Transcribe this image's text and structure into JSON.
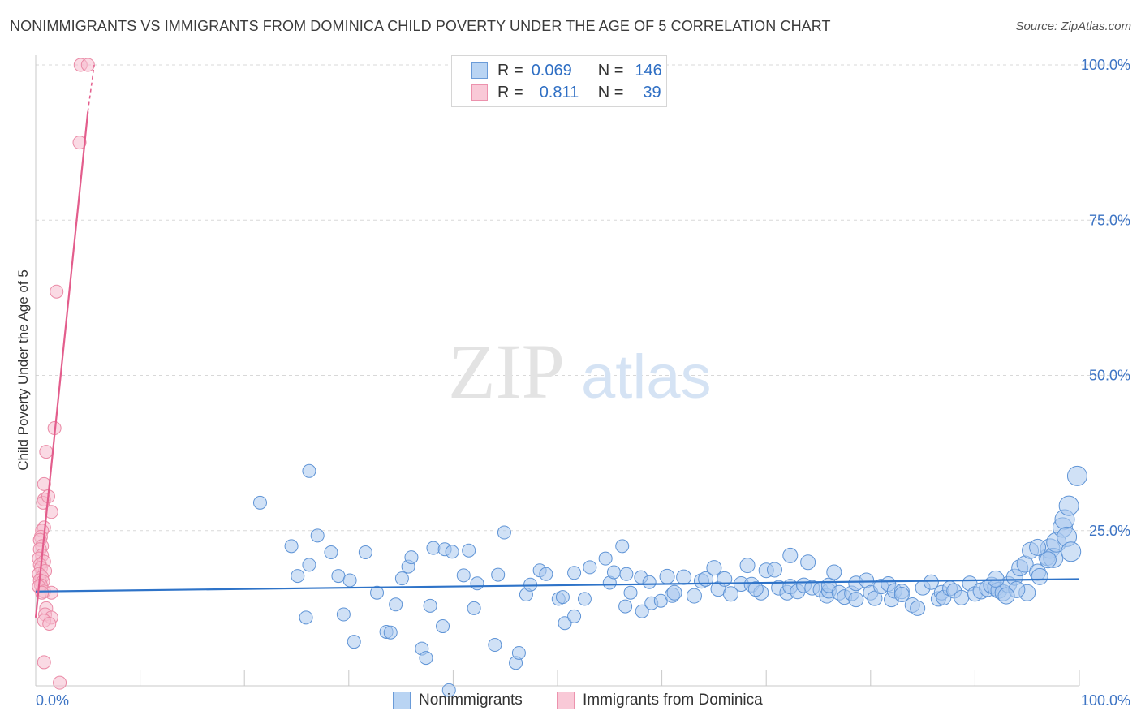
{
  "header": {
    "title": "NONIMMIGRANTS VS IMMIGRANTS FROM DOMINICA CHILD POVERTY UNDER THE AGE OF 5 CORRELATION CHART",
    "source": "Source: ZipAtlas.com"
  },
  "watermark": {
    "zip": "ZIP",
    "atlas": "atlas"
  },
  "legend": {
    "r_label": "R =",
    "n_label": "N =",
    "series1": {
      "r": "0.069",
      "n": "146"
    },
    "series2": {
      "r": "0.811",
      "n": "39"
    }
  },
  "colors": {
    "blue_fill": "#a9c8ef",
    "blue_stroke": "#5f94d6",
    "blue_line": "#2e73c8",
    "pink_fill": "#f6bccd",
    "pink_stroke": "#ea8aa6",
    "pink_line": "#e35d8c",
    "tick_text": "#3d74c4"
  },
  "chart_data": {
    "type": "scatter",
    "title": "NONIMMIGRANTS VS IMMIGRANTS FROM DOMINICA CHILD POVERTY UNDER THE AGE OF 5 CORRELATION CHART",
    "xlabel": "",
    "ylabel": "Child Poverty Under the Age of 5",
    "xlim": [
      0,
      100
    ],
    "ylim": [
      0,
      100
    ],
    "x_tick_labels": [
      "0.0%",
      "100.0%"
    ],
    "y_ticks": [
      25,
      50,
      75,
      100
    ],
    "y_tick_labels": [
      "25.0%",
      "50.0%",
      "75.0%",
      "100.0%"
    ],
    "grid": true,
    "legend_position": "top-center",
    "series": [
      {
        "name": "Nonimmigrants",
        "r": 0.069,
        "n": 146,
        "trend": {
          "x": [
            0,
            100
          ],
          "y": [
            15.2,
            17.2
          ]
        },
        "points": [
          [
            21.5,
            29.5,
            1
          ],
          [
            26.2,
            34.6,
            1
          ],
          [
            24.5,
            22.5,
            1
          ],
          [
            25.1,
            17.7,
            1
          ],
          [
            26.2,
            19.5,
            1
          ],
          [
            25.9,
            11.0,
            1
          ],
          [
            27.0,
            24.2,
            1
          ],
          [
            28.3,
            21.5,
            1
          ],
          [
            29.0,
            17.7,
            1
          ],
          [
            29.5,
            11.5,
            1
          ],
          [
            30.1,
            17.0,
            1
          ],
          [
            30.5,
            7.1,
            1
          ],
          [
            31.6,
            21.5,
            1
          ],
          [
            32.7,
            15.0,
            1
          ],
          [
            33.6,
            8.7,
            1
          ],
          [
            34.0,
            8.6,
            1
          ],
          [
            34.5,
            13.1,
            1
          ],
          [
            35.1,
            17.3,
            1
          ],
          [
            35.7,
            19.2,
            1
          ],
          [
            36.0,
            20.7,
            1
          ],
          [
            37.0,
            6.0,
            1
          ],
          [
            37.4,
            4.5,
            1
          ],
          [
            37.8,
            12.9,
            1
          ],
          [
            38.1,
            22.2,
            1
          ],
          [
            39.0,
            9.6,
            1
          ],
          [
            39.2,
            22.0,
            1
          ],
          [
            39.6,
            -0.7,
            1
          ],
          [
            39.9,
            21.6,
            1
          ],
          [
            41.0,
            17.8,
            1
          ],
          [
            41.5,
            21.8,
            1
          ],
          [
            42.0,
            12.5,
            1
          ],
          [
            42.3,
            16.5,
            1
          ],
          [
            44.3,
            17.9,
            1
          ],
          [
            44.0,
            6.6,
            1
          ],
          [
            44.9,
            24.7,
            1
          ],
          [
            46.0,
            3.7,
            1
          ],
          [
            47.0,
            14.7,
            1
          ],
          [
            46.3,
            5.3,
            1
          ],
          [
            47.4,
            16.3,
            1
          ],
          [
            48.3,
            18.6,
            1
          ],
          [
            48.9,
            18.0,
            1
          ],
          [
            50.1,
            14.0,
            1
          ],
          [
            50.5,
            14.3,
            1
          ],
          [
            50.7,
            10.1,
            1
          ],
          [
            51.6,
            11.2,
            1
          ],
          [
            51.6,
            18.2,
            1
          ],
          [
            52.6,
            14.0,
            1
          ],
          [
            53.1,
            19.1,
            1
          ],
          [
            54.6,
            20.5,
            1
          ],
          [
            55.0,
            16.6,
            1
          ],
          [
            55.4,
            18.3,
            1
          ],
          [
            56.5,
            12.8,
            1
          ],
          [
            56.2,
            22.5,
            1
          ],
          [
            56.6,
            18.0,
            1
          ],
          [
            57.0,
            15.0,
            1
          ],
          [
            58.0,
            17.5,
            1
          ],
          [
            58.1,
            12.0,
            1
          ],
          [
            58.8,
            16.7,
            1
          ],
          [
            59.0,
            13.3,
            1
          ],
          [
            59.9,
            13.7,
            1
          ],
          [
            60.5,
            17.6,
            1
          ],
          [
            61.0,
            14.6,
            1
          ],
          [
            61.2,
            15.0,
            1
          ],
          [
            62.1,
            17.5,
            1
          ],
          [
            63.1,
            14.5,
            1
          ],
          [
            63.8,
            16.9,
            1
          ],
          [
            64.2,
            17.2,
            1
          ],
          [
            65.0,
            19.0,
            1
          ],
          [
            65.4,
            15.6,
            1
          ],
          [
            66.0,
            17.2,
            1
          ],
          [
            66.6,
            14.8,
            1
          ],
          [
            67.6,
            16.4,
            1
          ],
          [
            68.2,
            19.4,
            1
          ],
          [
            68.6,
            16.3,
            1
          ],
          [
            69.5,
            15.0,
            1
          ],
          [
            69.0,
            15.6,
            1
          ],
          [
            70.0,
            18.6,
            1
          ],
          [
            70.8,
            18.7,
            1
          ],
          [
            71.2,
            15.8,
            1
          ],
          [
            72.0,
            15.0,
            1
          ],
          [
            72.3,
            16.0,
            1
          ],
          [
            72.3,
            21.0,
            1
          ],
          [
            73.0,
            15.2,
            1
          ],
          [
            73.6,
            16.2,
            1
          ],
          [
            74.0,
            19.9,
            1
          ],
          [
            74.4,
            15.8,
            1
          ],
          [
            75.2,
            15.5,
            1
          ],
          [
            75.8,
            14.5,
            1
          ],
          [
            76.0,
            15.3,
            1
          ],
          [
            76.0,
            16.2,
            1
          ],
          [
            76.5,
            18.3,
            1
          ],
          [
            77.0,
            15.0,
            1
          ],
          [
            77.5,
            14.3,
            1
          ],
          [
            78.2,
            14.9,
            1
          ],
          [
            78.6,
            16.5,
            1
          ],
          [
            78.6,
            13.9,
            1
          ],
          [
            79.6,
            17.0,
            1
          ],
          [
            80.0,
            15.0,
            1
          ],
          [
            80.4,
            14.1,
            1
          ],
          [
            81.0,
            16.0,
            1
          ],
          [
            81.7,
            16.4,
            1
          ],
          [
            82.0,
            13.9,
            1
          ],
          [
            82.3,
            15.3,
            1
          ],
          [
            83.0,
            15.2,
            1
          ],
          [
            83.0,
            14.7,
            1
          ],
          [
            84.0,
            13.0,
            1
          ],
          [
            84.5,
            12.5,
            1
          ],
          [
            85.0,
            15.8,
            1
          ],
          [
            85.8,
            16.7,
            1
          ],
          [
            86.5,
            14.0,
            1
          ],
          [
            86.8,
            15.0,
            1
          ],
          [
            87.0,
            14.2,
            1
          ],
          [
            87.6,
            15.7,
            1
          ],
          [
            88.0,
            15.3,
            1
          ],
          [
            88.7,
            14.2,
            1
          ],
          [
            89.5,
            16.5,
            1
          ],
          [
            90.0,
            14.8,
            1
          ],
          [
            90.6,
            15.3,
            1
          ],
          [
            91.2,
            15.7,
            1
          ],
          [
            91.6,
            16.2,
            1
          ],
          [
            92.0,
            15.8,
            1
          ],
          [
            92.3,
            15.4,
            1
          ],
          [
            92.7,
            15.0,
            1
          ],
          [
            93.2,
            16.3,
            1
          ],
          [
            93.8,
            17.5,
            1
          ],
          [
            94.3,
            19.0,
            1
          ],
          [
            94.8,
            19.6,
            1
          ],
          [
            95.3,
            21.8,
            1
          ],
          [
            96.0,
            18.3,
            1
          ],
          [
            96.2,
            17.6,
            1
          ],
          [
            96.9,
            20.7,
            1
          ],
          [
            97.2,
            22.1,
            1
          ],
          [
            97.5,
            20.6,
            1
          ],
          [
            97.8,
            23.1,
            1
          ],
          [
            98.4,
            25.5,
            1
          ],
          [
            98.6,
            26.8,
            1
          ],
          [
            99.0,
            29.0,
            1
          ],
          [
            98.8,
            24.0,
            1
          ],
          [
            99.2,
            21.6,
            1
          ],
          [
            99.8,
            33.8,
            1
          ],
          [
            97.0,
            20.3,
            1
          ],
          [
            96.0,
            22.3,
            1
          ],
          [
            95.0,
            15.0,
            1
          ],
          [
            94.0,
            15.5,
            1
          ],
          [
            93.0,
            14.5,
            1
          ],
          [
            92.0,
            17.2,
            1
          ]
        ]
      },
      {
        "name": "Immigrants from Dominica",
        "r": 0.811,
        "n": 39,
        "trend": {
          "x": [
            0,
            5.0
          ],
          "y": [
            11.0,
            92.5
          ],
          "dash_to": [
            5.6,
            100
          ]
        },
        "points": [
          [
            4.3,
            100,
            1
          ],
          [
            5.0,
            100,
            1
          ],
          [
            4.2,
            87.5,
            1
          ],
          [
            2.0,
            63.5,
            1
          ],
          [
            1.8,
            41.5,
            1
          ],
          [
            1.0,
            37.7,
            1
          ],
          [
            0.8,
            32.5,
            1
          ],
          [
            0.8,
            30.0,
            1
          ],
          [
            0.7,
            29.5,
            1
          ],
          [
            1.2,
            30.5,
            1
          ],
          [
            1.5,
            28.0,
            1
          ],
          [
            0.8,
            25.5,
            1
          ],
          [
            0.6,
            25.0,
            1
          ],
          [
            0.5,
            24.0,
            1
          ],
          [
            0.4,
            23.5,
            1
          ],
          [
            0.6,
            22.5,
            1
          ],
          [
            0.4,
            22.0,
            1
          ],
          [
            0.6,
            21.0,
            1
          ],
          [
            0.3,
            20.5,
            1
          ],
          [
            0.8,
            20.0,
            1
          ],
          [
            0.4,
            19.5,
            1
          ],
          [
            0.5,
            19.0,
            1
          ],
          [
            0.9,
            18.5,
            1
          ],
          [
            0.3,
            18.0,
            1
          ],
          [
            0.6,
            17.5,
            1
          ],
          [
            0.4,
            17.0,
            1
          ],
          [
            0.7,
            16.8,
            1
          ],
          [
            0.5,
            16.2,
            1
          ],
          [
            0.3,
            16.0,
            1
          ],
          [
            0.8,
            15.2,
            1
          ],
          [
            1.5,
            15.0,
            1
          ],
          [
            0.6,
            15.0,
            1
          ],
          [
            1.0,
            12.5,
            1
          ],
          [
            0.9,
            11.5,
            1
          ],
          [
            1.5,
            11.0,
            1
          ],
          [
            0.8,
            10.5,
            1
          ],
          [
            1.3,
            10.0,
            1
          ],
          [
            0.8,
            3.8,
            1
          ],
          [
            2.3,
            0.5,
            1
          ]
        ]
      }
    ]
  },
  "bottom_legend": {
    "series1": "Nonimmigrants",
    "series2": "Immigrants from Dominica"
  }
}
